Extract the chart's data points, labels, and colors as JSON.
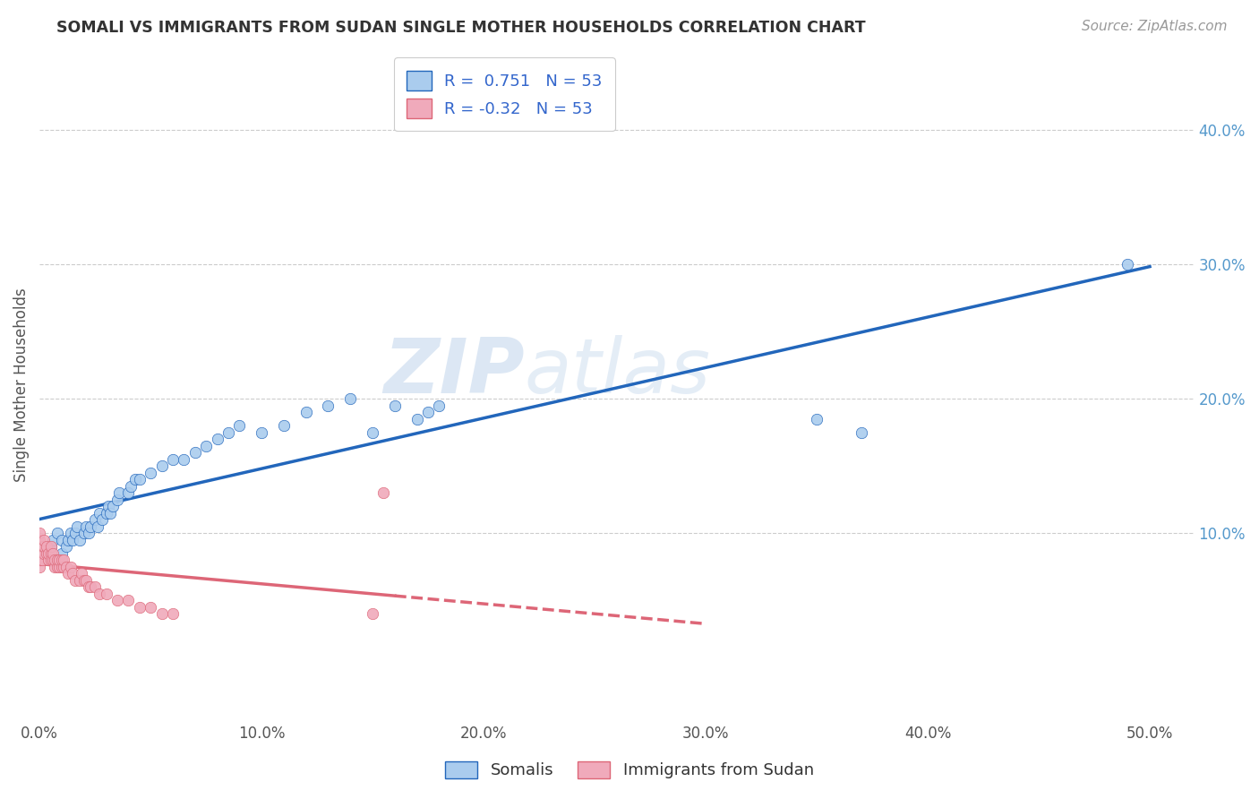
{
  "title": "SOMALI VS IMMIGRANTS FROM SUDAN SINGLE MOTHER HOUSEHOLDS CORRELATION CHART",
  "source": "Source: ZipAtlas.com",
  "ylabel": "Single Mother Households",
  "xlim": [
    0.0,
    0.52
  ],
  "ylim": [
    -0.04,
    0.46
  ],
  "xticks": [
    0.0,
    0.1,
    0.2,
    0.3,
    0.4,
    0.5
  ],
  "xticklabels": [
    "0.0%",
    "10.0%",
    "20.0%",
    "30.0%",
    "40.0%",
    "50.0%"
  ],
  "yticks_right": [
    0.1,
    0.2,
    0.3,
    0.4
  ],
  "yticklabels_right": [
    "10.0%",
    "20.0%",
    "30.0%",
    "40.0%"
  ],
  "legend_bottom": [
    "Somalis",
    "Immigrants from Sudan"
  ],
  "r_somali": 0.751,
  "r_sudan": -0.32,
  "n": 53,
  "scatter_somali_color": "#aaccee",
  "scatter_sudan_color": "#f0aabb",
  "line_somali_color": "#2266bb",
  "line_sudan_color": "#dd6677",
  "watermark_text": "ZIP",
  "watermark_text2": "atlas",
  "background_color": "#ffffff",
  "grid_color": "#cccccc",
  "somali_x": [
    0.003,
    0.005,
    0.006,
    0.008,
    0.01,
    0.01,
    0.012,
    0.013,
    0.014,
    0.015,
    0.016,
    0.017,
    0.018,
    0.02,
    0.021,
    0.022,
    0.023,
    0.025,
    0.026,
    0.027,
    0.028,
    0.03,
    0.031,
    0.032,
    0.033,
    0.035,
    0.036,
    0.04,
    0.041,
    0.043,
    0.045,
    0.05,
    0.055,
    0.06,
    0.065,
    0.07,
    0.075,
    0.08,
    0.085,
    0.09,
    0.1,
    0.11,
    0.12,
    0.13,
    0.14,
    0.15,
    0.16,
    0.17,
    0.175,
    0.18,
    0.35,
    0.37,
    0.49
  ],
  "somali_y": [
    0.085,
    0.09,
    0.095,
    0.1,
    0.085,
    0.095,
    0.09,
    0.095,
    0.1,
    0.095,
    0.1,
    0.105,
    0.095,
    0.1,
    0.105,
    0.1,
    0.105,
    0.11,
    0.105,
    0.115,
    0.11,
    0.115,
    0.12,
    0.115,
    0.12,
    0.125,
    0.13,
    0.13,
    0.135,
    0.14,
    0.14,
    0.145,
    0.15,
    0.155,
    0.155,
    0.16,
    0.165,
    0.17,
    0.175,
    0.18,
    0.175,
    0.18,
    0.19,
    0.195,
    0.2,
    0.175,
    0.195,
    0.185,
    0.19,
    0.195,
    0.185,
    0.175,
    0.3
  ],
  "sudan_x": [
    0.0,
    0.0,
    0.0,
    0.0,
    0.0,
    0.0,
    0.001,
    0.001,
    0.001,
    0.002,
    0.002,
    0.002,
    0.003,
    0.003,
    0.004,
    0.004,
    0.005,
    0.005,
    0.005,
    0.006,
    0.006,
    0.007,
    0.007,
    0.008,
    0.008,
    0.009,
    0.009,
    0.01,
    0.01,
    0.011,
    0.011,
    0.012,
    0.013,
    0.014,
    0.015,
    0.016,
    0.018,
    0.019,
    0.02,
    0.021,
    0.022,
    0.023,
    0.025,
    0.027,
    0.03,
    0.035,
    0.04,
    0.045,
    0.05,
    0.055,
    0.06,
    0.15,
    0.155
  ],
  "sudan_y": [
    0.085,
    0.09,
    0.095,
    0.1,
    0.075,
    0.08,
    0.085,
    0.09,
    0.08,
    0.085,
    0.09,
    0.095,
    0.085,
    0.09,
    0.08,
    0.085,
    0.085,
    0.08,
    0.09,
    0.08,
    0.085,
    0.075,
    0.08,
    0.075,
    0.08,
    0.075,
    0.08,
    0.075,
    0.08,
    0.075,
    0.08,
    0.075,
    0.07,
    0.075,
    0.07,
    0.065,
    0.065,
    0.07,
    0.065,
    0.065,
    0.06,
    0.06,
    0.06,
    0.055,
    0.055,
    0.05,
    0.05,
    0.045,
    0.045,
    0.04,
    0.04,
    0.04,
    0.13
  ]
}
